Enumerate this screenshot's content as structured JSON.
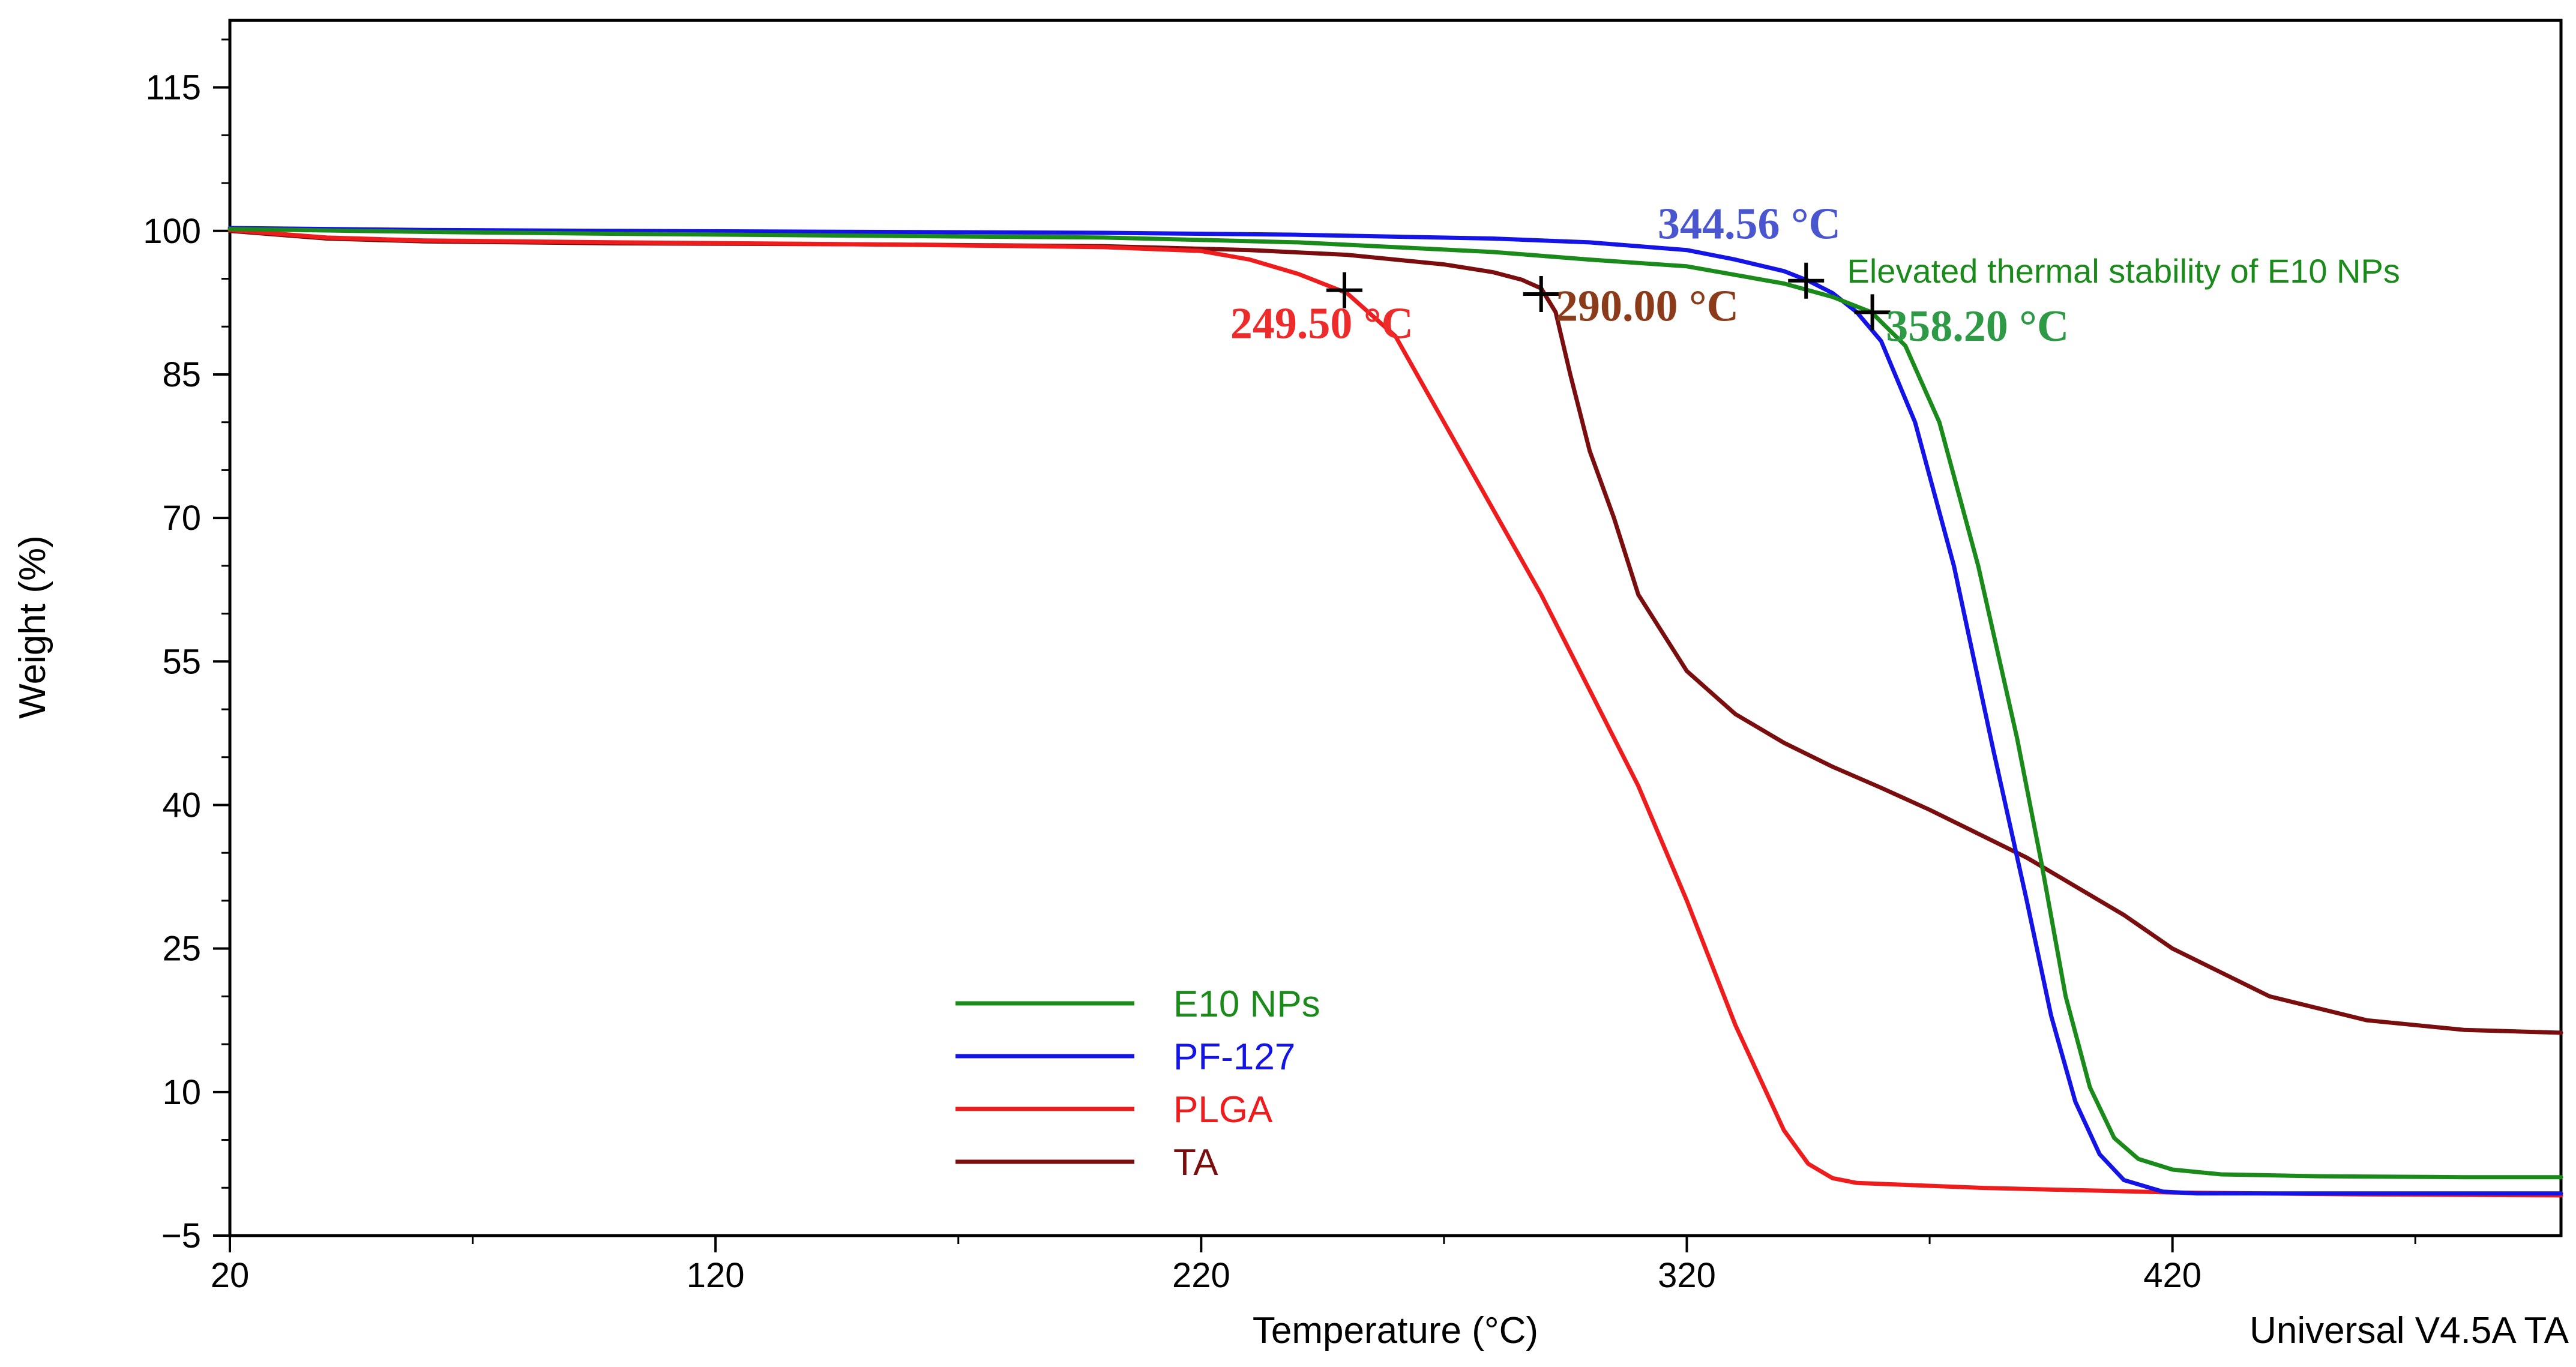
{
  "chart_data": {
    "type": "line",
    "title": "",
    "xlabel": "Temperature (°C)",
    "ylabel": "Weight (%)",
    "xlim": [
      20,
      500
    ],
    "ylim": [
      -5,
      122
    ],
    "x_ticks": [
      20,
      120,
      220,
      320,
      420
    ],
    "x_tick_labels": [
      "20",
      "120",
      "220",
      "320",
      "420"
    ],
    "y_ticks": [
      -5,
      10,
      25,
      40,
      55,
      70,
      85,
      100,
      115
    ],
    "y_tick_labels": [
      "−5",
      "10",
      "25",
      "40",
      "55",
      "70",
      "85",
      "100",
      "115"
    ],
    "grid": false,
    "legend_position": "bottom-center",
    "footer": "Universal V4.5A TA",
    "series": [
      {
        "name": "E10 NPs",
        "color": "#1a8a1a",
        "x": [
          20,
          60,
          100,
          150,
          200,
          240,
          280,
          300,
          320,
          340,
          350,
          358,
          365,
          372,
          380,
          388,
          393,
          398,
          403,
          408,
          413,
          420,
          430,
          450,
          480,
          500
        ],
        "y": [
          100.2,
          99.9,
          99.7,
          99.5,
          99.3,
          98.8,
          97.8,
          97.0,
          96.3,
          94.5,
          93.1,
          91.5,
          88.0,
          80.0,
          65.0,
          47.0,
          34.0,
          20.0,
          10.5,
          5.2,
          3.0,
          1.9,
          1.4,
          1.2,
          1.1,
          1.1
        ]
      },
      {
        "name": "PF-127",
        "color": "#1414e6",
        "x": [
          20,
          60,
          100,
          150,
          200,
          240,
          280,
          300,
          320,
          330,
          340,
          345,
          350,
          355,
          360,
          367,
          375,
          383,
          390,
          395,
          400,
          405,
          410,
          418,
          425,
          440,
          470,
          500
        ],
        "y": [
          100.3,
          100.1,
          100.0,
          99.9,
          99.8,
          99.6,
          99.2,
          98.8,
          98.0,
          97.0,
          95.8,
          94.8,
          93.5,
          91.5,
          88.5,
          80.0,
          65.0,
          46.0,
          30.0,
          18.0,
          9.0,
          3.5,
          0.8,
          -0.4,
          -0.6,
          -0.6,
          -0.6,
          -0.6
        ]
      },
      {
        "name": "PLGA",
        "color": "#ee1c1c",
        "x": [
          20,
          40,
          60,
          100,
          150,
          200,
          220,
          230,
          240,
          250,
          260,
          270,
          280,
          290,
          300,
          310,
          320,
          330,
          340,
          345,
          350,
          355,
          360,
          380,
          420,
          460,
          500
        ],
        "y": [
          100.1,
          99.3,
          99.0,
          98.8,
          98.6,
          98.3,
          97.9,
          97.0,
          95.5,
          93.5,
          89.0,
          80.0,
          71.0,
          62.0,
          52.0,
          42.0,
          30.0,
          17.0,
          6.0,
          2.5,
          1.0,
          0.5,
          0.4,
          0.0,
          -0.5,
          -0.7,
          -0.8
        ]
      },
      {
        "name": "TA",
        "color": "#7a0e0e",
        "x": [
          20,
          40,
          60,
          100,
          150,
          200,
          230,
          250,
          270,
          280,
          286,
          290,
          293,
          296,
          300,
          305,
          310,
          320,
          330,
          340,
          350,
          360,
          370,
          380,
          390,
          400,
          410,
          420,
          440,
          460,
          480,
          500
        ],
        "y": [
          100.0,
          99.2,
          98.9,
          98.7,
          98.6,
          98.4,
          98.0,
          97.5,
          96.5,
          95.7,
          94.9,
          94.0,
          91.5,
          85.0,
          77.0,
          70.0,
          62.0,
          54.0,
          49.5,
          46.5,
          44.0,
          41.8,
          39.5,
          37.0,
          34.5,
          31.5,
          28.5,
          25.0,
          20.0,
          17.5,
          16.5,
          16.2
        ]
      }
    ],
    "annotations": [
      {
        "text": "249.50 °C",
        "color": "#ee2b2b",
        "marker_x": 249.5,
        "marker_y": 93.8,
        "text_x": 226,
        "text_y": 88.8,
        "style": "serif"
      },
      {
        "text": "290.00 °C",
        "color": "#8b3a1a",
        "marker_x": 290.0,
        "marker_y": 93.4,
        "text_x": 293,
        "text_y": 90.6,
        "style": "serif"
      },
      {
        "text": "344.56 °C",
        "color": "#4a55d0",
        "marker_x": 344.56,
        "marker_y": 94.8,
        "text_x": 314,
        "text_y": 99.2,
        "style": "serif"
      },
      {
        "text": "358.20 °C",
        "color": "#2e9a46",
        "marker_x": 358.2,
        "marker_y": 91.5,
        "text_x": 361,
        "text_y": 88.5,
        "style": "serif"
      },
      {
        "text": "Elevated thermal stability of E10 NPs",
        "color": "#1a8a1a",
        "text_x": 353,
        "text_y": 94.6,
        "style": "sans"
      }
    ]
  }
}
